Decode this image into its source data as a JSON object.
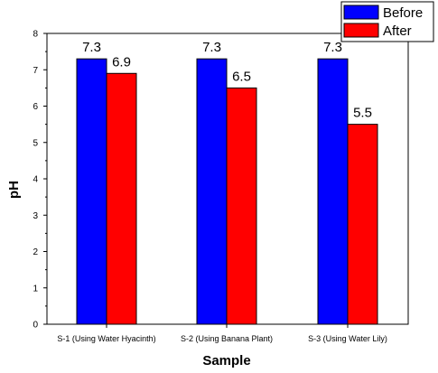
{
  "chart_data": {
    "type": "bar",
    "categories": [
      "S-1 (Using Water Hyacinth)",
      "S-2 (Using Banana Plant)",
      "S-3 (Using Water Lily)"
    ],
    "series": [
      {
        "name": "Before",
        "color": "#0000ff",
        "values": [
          7.3,
          7.3,
          7.3
        ],
        "labels": [
          "7.3",
          "7.3",
          "7.3"
        ]
      },
      {
        "name": "After",
        "color": "#ff0000",
        "values": [
          6.9,
          6.5,
          5.5
        ],
        "labels": [
          "6.9",
          "6.5",
          "5.5"
        ]
      }
    ],
    "xlabel": "Sample",
    "ylabel": "pH",
    "ylim": [
      0,
      8
    ],
    "yticks": [
      "0",
      "1",
      "2",
      "3",
      "4",
      "5",
      "6",
      "7",
      "8"
    ],
    "grid": false,
    "legend_position": "top-right"
  }
}
